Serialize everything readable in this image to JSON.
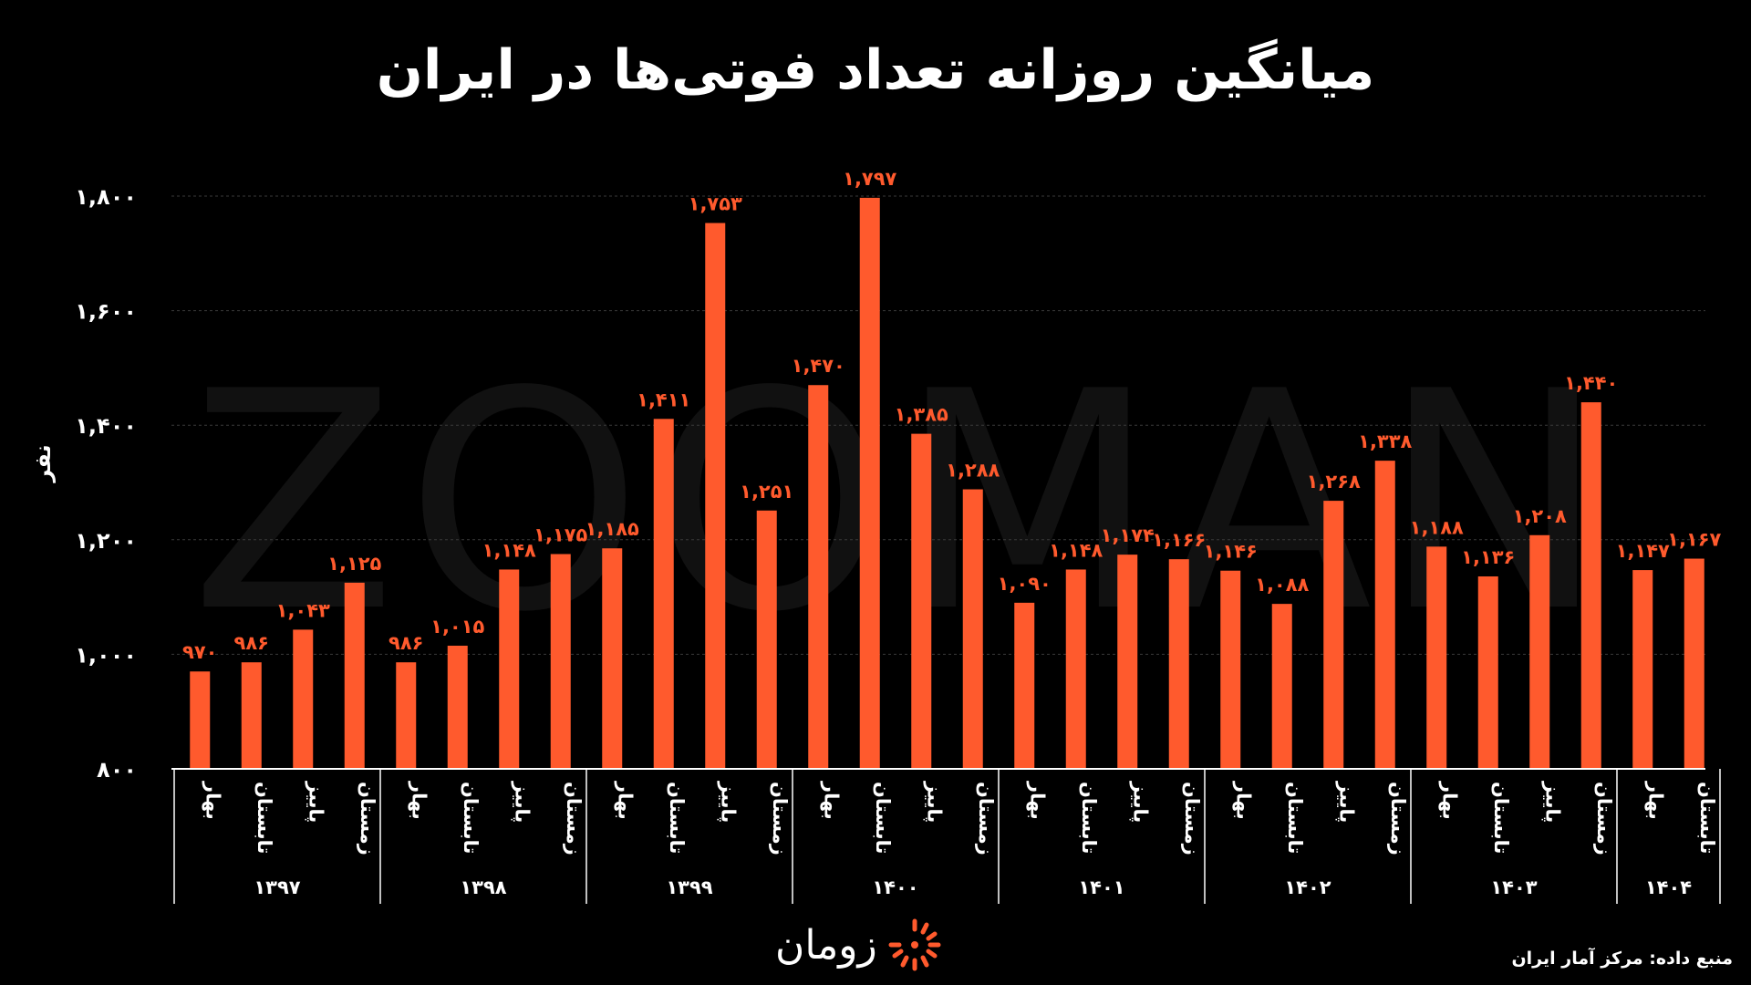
{
  "title": "میانگین روزانه تعداد فوتی‌ها در ایران",
  "source": "منبع داده: مرکز آمار ایران",
  "brand": {
    "name": "زومان",
    "watermark": "ZOOMAN",
    "logo_icon": "sunburst-logo-icon"
  },
  "colors": {
    "background": "#000000",
    "bar": "#ff5a2d",
    "label": "#ff5a2d",
    "text": "#ffffff",
    "grid": "#3a3a3a"
  },
  "chart_data": {
    "type": "bar",
    "ylabel": "نفر",
    "ylim": [
      800,
      1800
    ],
    "yticks": [
      800,
      1000,
      1200,
      1400,
      1600,
      1800
    ],
    "ytick_labels": [
      "۸۰۰",
      "۱,۰۰۰",
      "۱,۲۰۰",
      "۱,۴۰۰",
      "۱,۶۰۰",
      "۱,۸۰۰"
    ],
    "grid": true,
    "groups": [
      {
        "year": "۱۳۹۷",
        "seasons": [
          "بهار",
          "تابستان",
          "پاییز",
          "زمستان"
        ],
        "values": [
          970,
          986,
          1043,
          1125
        ],
        "value_labels": [
          "۹۷۰",
          "۹۸۶",
          "۱,۰۴۳",
          "۱,۱۲۵"
        ]
      },
      {
        "year": "۱۳۹۸",
        "seasons": [
          "بهار",
          "تابستان",
          "پاییز",
          "زمستان"
        ],
        "values": [
          986,
          1015,
          1148,
          1175
        ],
        "value_labels": [
          "۹۸۶",
          "۱,۰۱۵",
          "۱,۱۴۸",
          "۱,۱۷۵"
        ]
      },
      {
        "year": "۱۳۹۹",
        "seasons": [
          "بهار",
          "تابستان",
          "پاییز",
          "زمستان"
        ],
        "values": [
          1185,
          1411,
          1753,
          1251
        ],
        "value_labels": [
          "۱,۱۸۵",
          "۱,۴۱۱",
          "۱,۷۵۳",
          "۱,۲۵۱"
        ]
      },
      {
        "year": "۱۴۰۰",
        "seasons": [
          "بهار",
          "تابستان",
          "پاییز",
          "زمستان"
        ],
        "values": [
          1470,
          1797,
          1385,
          1288
        ],
        "value_labels": [
          "۱,۴۷۰",
          "۱,۷۹۷",
          "۱,۳۸۵",
          "۱,۲۸۸"
        ]
      },
      {
        "year": "۱۴۰۱",
        "seasons": [
          "بهار",
          "تابستان",
          "پاییز",
          "زمستان"
        ],
        "values": [
          1090,
          1148,
          1174,
          1166
        ],
        "value_labels": [
          "۱,۰۹۰",
          "۱,۱۴۸",
          "۱,۱۷۴",
          "۱,۱۶۶"
        ]
      },
      {
        "year": "۱۴۰۲",
        "seasons": [
          "بهار",
          "تابستان",
          "پاییز",
          "زمستان"
        ],
        "values": [
          1146,
          1088,
          1268,
          1338
        ],
        "value_labels": [
          "۱,۱۴۶",
          "۱,۰۸۸",
          "۱,۲۶۸",
          "۱,۳۳۸"
        ]
      },
      {
        "year": "۱۴۰۳",
        "seasons": [
          "بهار",
          "تابستان",
          "پاییز",
          "زمستان"
        ],
        "values": [
          1188,
          1136,
          1208,
          1440
        ],
        "value_labels": [
          "۱,۱۸۸",
          "۱,۱۳۶",
          "۱,۲۰۸",
          "۱,۴۴۰"
        ]
      },
      {
        "year": "۱۴۰۴",
        "seasons": [
          "بهار",
          "تابستان"
        ],
        "values": [
          1147,
          1167
        ],
        "value_labels": [
          "۱,۱۴۷",
          "۱,۱۶۷"
        ]
      }
    ]
  }
}
